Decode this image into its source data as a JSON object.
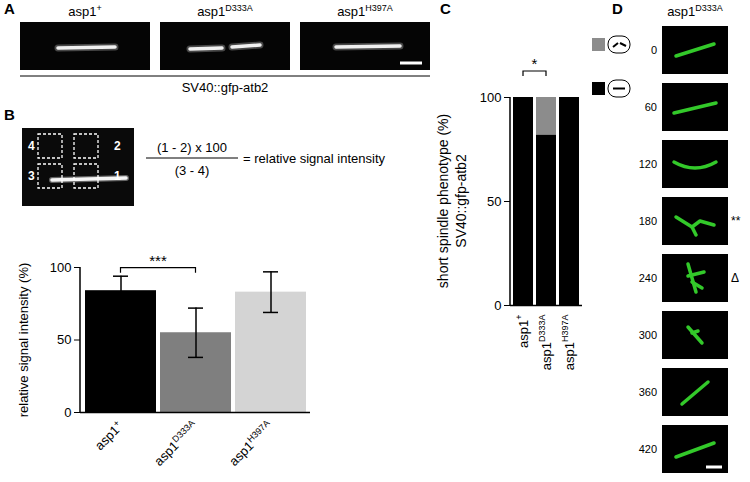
{
  "panel_labels": [
    "A",
    "B",
    "C",
    "D"
  ],
  "panel_A": {
    "images": [
      "asp1+",
      "asp1D333A",
      "asp1H397A"
    ],
    "caption": "SV40::gfp-atb2"
  },
  "panel_B_inset": {
    "regions": [
      "4",
      "2",
      "3",
      "1"
    ],
    "formula": {
      "numerator": "(1 - 2) x 100",
      "denominator": "(3 - 4)",
      "result": "= relative signal intensity"
    }
  },
  "chart_data": [
    {
      "type": "bar",
      "categories": [
        "asp1+",
        "asp1D333A",
        "asp1H397A"
      ],
      "values": [
        84,
        55,
        83
      ],
      "error": [
        10,
        17,
        14
      ],
      "colors": [
        "#000000",
        "#7f7f7f",
        "#d4d4d4"
      ],
      "ylabel": "relative signal intensity (%)",
      "ylim": [
        0,
        100
      ],
      "yticks": [
        0,
        50,
        100
      ],
      "annotations": [
        {
          "text": "***",
          "between": [
            "asp1+",
            "asp1D333A"
          ]
        }
      ]
    },
    {
      "type": "bar",
      "stacked": true,
      "legend": "right",
      "categories": [
        "asp1+",
        "asp1D333A",
        "asp1H397A"
      ],
      "series": [
        {
          "color": "#000000",
          "values": [
            100,
            82,
            100
          ]
        },
        {
          "color": "#8c8c8c",
          "values": [
            0,
            18,
            0
          ]
        }
      ],
      "ylabel": [
        "short spindle phenotype (%)",
        "SV40::gfp-atb2"
      ],
      "ylim": [
        0,
        100
      ],
      "yticks": [
        0,
        50,
        100
      ],
      "annotations": [
        {
          "text": "*",
          "between": [
            "asp1+",
            "asp1D333A"
          ]
        }
      ]
    }
  ],
  "panel_D": {
    "title": "asp1D333A",
    "times": [
      0,
      60,
      120,
      180,
      240,
      300,
      360,
      420
    ],
    "marks": [
      {
        "time": 180,
        "label": "**"
      },
      {
        "time": 240,
        "label": "Δ"
      }
    ]
  }
}
